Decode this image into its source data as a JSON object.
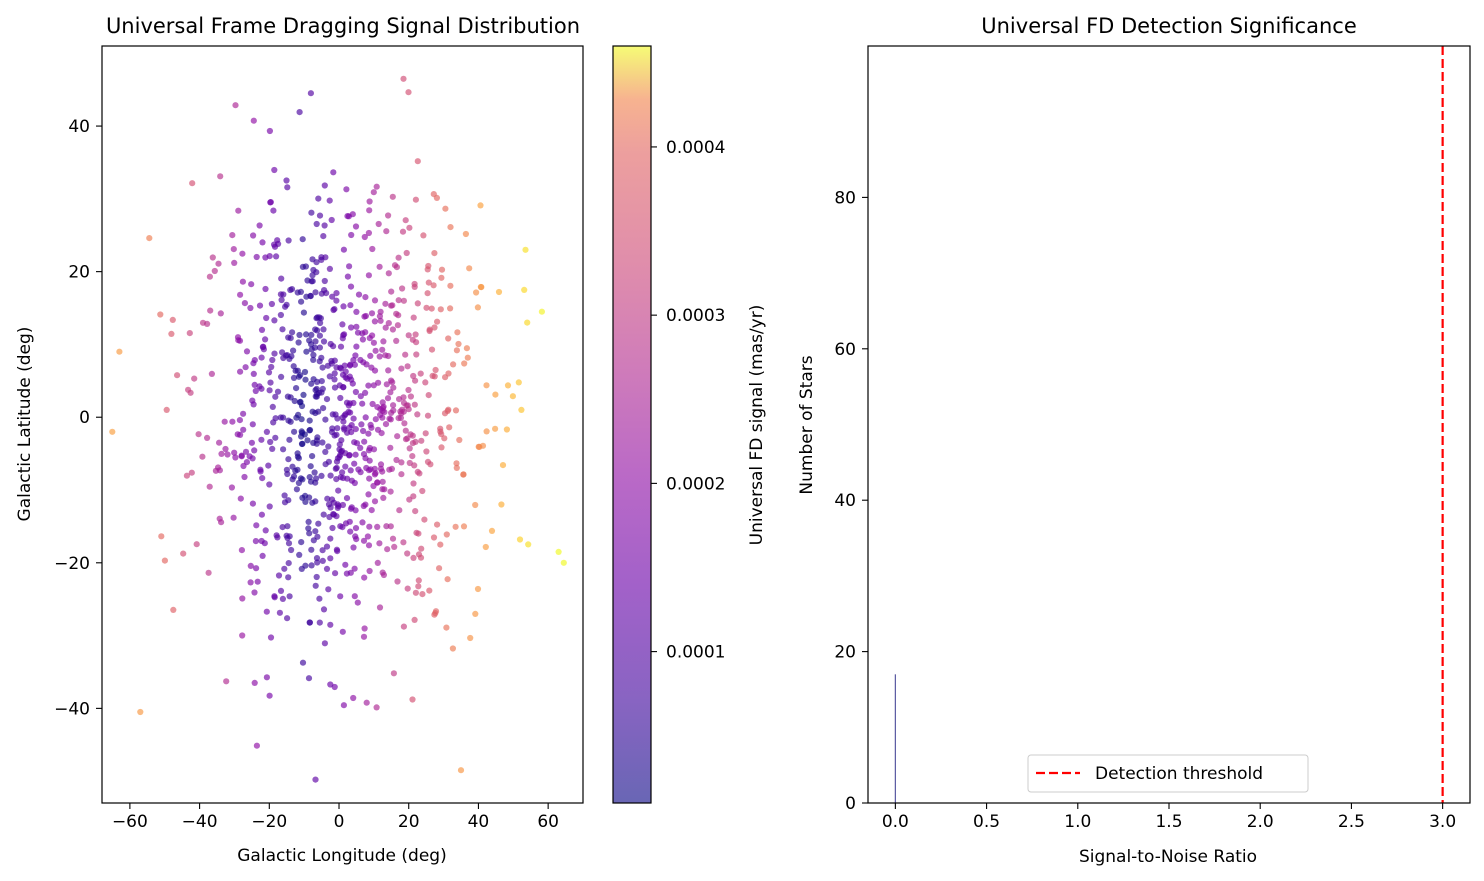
{
  "chart_data": [
    {
      "type": "scatter",
      "title": "Universal Frame Dragging Signal Distribution",
      "xlabel": "Galactic Longitude (deg)",
      "ylabel": "Galactic Latitude (deg)",
      "xlim": [
        -68,
        70
      ],
      "ylim": [
        -53,
        51
      ],
      "xticks": [
        "−60",
        "−40",
        "−20",
        "0",
        "20",
        "40",
        "60"
      ],
      "xtick_values": [
        -60,
        -40,
        -20,
        0,
        20,
        40,
        60
      ],
      "yticks": [
        "−40",
        "−20",
        "0",
        "20",
        "40"
      ],
      "ytick_values": [
        -40,
        -20,
        0,
        20,
        40
      ],
      "grid": false,
      "colormap": "plasma",
      "colorbar": {
        "label": "Universal FD signal (mas/yr)",
        "range": [
          1e-05,
          0.00046
        ],
        "ticks": [
          "0.0001",
          "0.0002",
          "0.0003",
          "0.0004"
        ],
        "tick_values": [
          0.0001,
          0.0002,
          0.0003,
          0.0004
        ]
      },
      "point_count": 900,
      "distribution": {
        "longitude_mean": 0,
        "longitude_std": 20,
        "latitude_mean": 0,
        "latitude_std": 15
      },
      "notable_points": [
        {
          "x": -63,
          "y": 9
        },
        {
          "x": -57,
          "y": -40.5
        },
        {
          "x": 18.5,
          "y": 46.5
        },
        {
          "x": 35,
          "y": -48.5
        },
        {
          "x": 63,
          "y": -18.5
        },
        {
          "x": 64.5,
          "y": -20
        },
        {
          "x": 54,
          "y": 13
        },
        {
          "x": 53.5,
          "y": 23
        }
      ],
      "signal_formula_note": "color ∝ |longitude|, minimum near longitude −10"
    },
    {
      "type": "bar",
      "title": "Universal FD Detection Significance",
      "xlabel": "Signal-to-Noise Ratio",
      "ylabel": "Number of Stars",
      "xlim": [
        -0.15,
        3.15
      ],
      "ylim": [
        0,
        100
      ],
      "xticks": [
        "0.0",
        "0.5",
        "1.0",
        "1.5",
        "2.0",
        "2.5",
        "3.0"
      ],
      "xtick_values": [
        0,
        0.5,
        1,
        1.5,
        2,
        2.5,
        3
      ],
      "yticks": [
        "0",
        "20",
        "40",
        "60",
        "80"
      ],
      "ytick_values": [
        0,
        20,
        40,
        60,
        80
      ],
      "bars": [
        {
          "x": 0.0,
          "value": 17
        }
      ],
      "threshold": {
        "x": 3.0,
        "label": "Detection threshold",
        "color": "#ff0000"
      },
      "legend_placement": "lower-center",
      "grid": false
    }
  ]
}
